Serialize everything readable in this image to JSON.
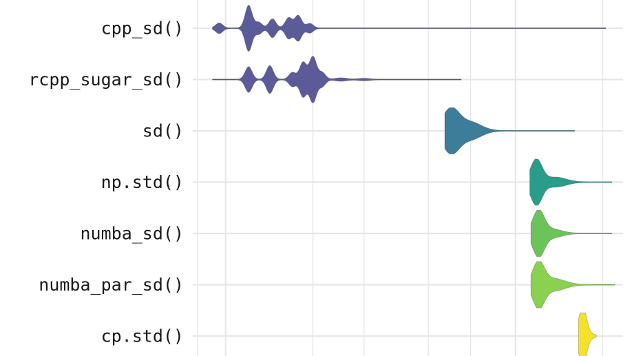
{
  "chart_data": {
    "type": "violin",
    "title": "",
    "xlabel": "",
    "ylabel": "",
    "x_scale": "log",
    "grid": true,
    "legend": "none",
    "categories": [
      "cpp_sd()",
      "rcpp_sugar_sd()",
      "sd()",
      "np.std()",
      "numba_sd()",
      "numba_par_sd()",
      "cp.std()"
    ],
    "series": [
      {
        "color": "#5b5b9a",
        "min": 0.9,
        "max": 20.5,
        "peaks": [
          {
            "x": 0.95,
            "h": 0.22,
            "w": 0.012
          },
          {
            "x": 1.2,
            "h": 1.0,
            "w": 0.012
          },
          {
            "x": 1.3,
            "h": 0.25,
            "w": 0.012
          },
          {
            "x": 1.45,
            "h": 0.4,
            "w": 0.012
          },
          {
            "x": 1.65,
            "h": 0.45,
            "w": 0.012
          },
          {
            "x": 1.78,
            "h": 0.55,
            "w": 0.012
          },
          {
            "x": 1.95,
            "h": 0.2,
            "w": 0.012
          }
        ]
      },
      {
        "color": "#5b5b9a",
        "min": 0.9,
        "max": 6.5,
        "peaks": [
          {
            "x": 1.2,
            "h": 0.55,
            "w": 0.012
          },
          {
            "x": 1.42,
            "h": 0.6,
            "w": 0.012
          },
          {
            "x": 1.7,
            "h": 0.3,
            "w": 0.012
          },
          {
            "x": 1.85,
            "h": 0.75,
            "w": 0.012
          },
          {
            "x": 2.0,
            "h": 1.0,
            "w": 0.012
          },
          {
            "x": 2.15,
            "h": 0.3,
            "w": 0.012
          },
          {
            "x": 2.5,
            "h": 0.06,
            "w": 0.02
          },
          {
            "x": 3.0,
            "h": 0.04,
            "w": 0.02
          }
        ]
      },
      {
        "color": "#3d7d9a",
        "min": 5.7,
        "max": 16.0,
        "peaks": [
          {
            "x": 6.0,
            "h": 1.0,
            "w": 0.03
          },
          {
            "x": 7.0,
            "h": 0.3,
            "w": 0.03
          },
          {
            "x": 7.6,
            "h": 0.08,
            "w": 0.03
          }
        ]
      },
      {
        "color": "#2a9d8a",
        "min": 11.2,
        "max": 21.5,
        "peaks": [
          {
            "x": 11.8,
            "h": 1.0,
            "w": 0.02
          },
          {
            "x": 13.5,
            "h": 0.15,
            "w": 0.03
          },
          {
            "x": 14.5,
            "h": 0.08,
            "w": 0.03
          }
        ]
      },
      {
        "color": "#6cc35a",
        "min": 11.3,
        "max": 21.5,
        "peaks": [
          {
            "x": 12.0,
            "h": 1.0,
            "w": 0.02
          },
          {
            "x": 13.2,
            "h": 0.1,
            "w": 0.03
          },
          {
            "x": 13.8,
            "h": 0.08,
            "w": 0.03
          }
        ]
      },
      {
        "color": "#8ad152",
        "min": 11.3,
        "max": 22.0,
        "peaks": [
          {
            "x": 12.0,
            "h": 1.0,
            "w": 0.02
          },
          {
            "x": 13.3,
            "h": 0.2,
            "w": 0.03
          },
          {
            "x": 14.5,
            "h": 0.1,
            "w": 0.03
          }
        ]
      },
      {
        "color": "#f5e12a",
        "min": 16.5,
        "max": 19.0,
        "peaks": [
          {
            "x": 16.95,
            "h": 1.0,
            "w": 0.012
          },
          {
            "x": 17.35,
            "h": 0.35,
            "w": 0.012
          },
          {
            "x": 17.9,
            "h": 0.08,
            "w": 0.02
          }
        ]
      }
    ],
    "colors": {
      "grid": "#e6e6e6",
      "tail": "#bdbdbd",
      "outline": "#4a4a4a"
    }
  }
}
